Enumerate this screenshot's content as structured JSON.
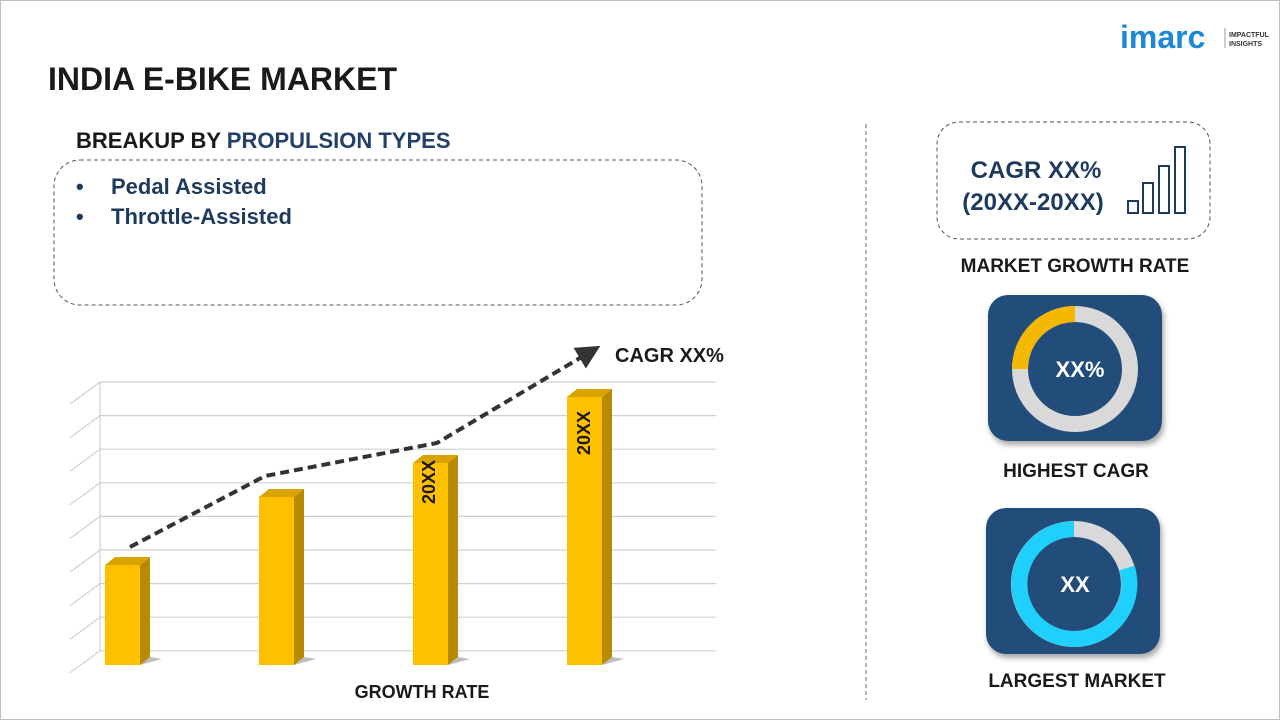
{
  "header": {
    "title": "INDIA E-BIKE MARKET",
    "logo": {
      "brand": "imarc",
      "tagline": [
        "IMPACTFUL",
        "INSIGHTS"
      ]
    }
  },
  "breakup": {
    "heading": "BREAKUP BY",
    "heading_highlight": "PROPULSION TYPES",
    "items": [
      "Pedal Assisted",
      "Throttle-Assisted"
    ]
  },
  "growth_chart": {
    "arrow_label": "CAGR XX%",
    "bar_labels": [
      "20XX",
      "20XX"
    ],
    "axis_label": "GROWTH RATE"
  },
  "sidebar": {
    "cagr_box": {
      "line1": "CAGR XX%",
      "line2": "(20XX-20XX)"
    },
    "cagr_caption": "MARKET GROWTH RATE",
    "highest": {
      "value": "XX%",
      "caption": "HIGHEST CAGR"
    },
    "largest": {
      "value": "XX",
      "caption": "LARGEST MARKET"
    }
  }
}
